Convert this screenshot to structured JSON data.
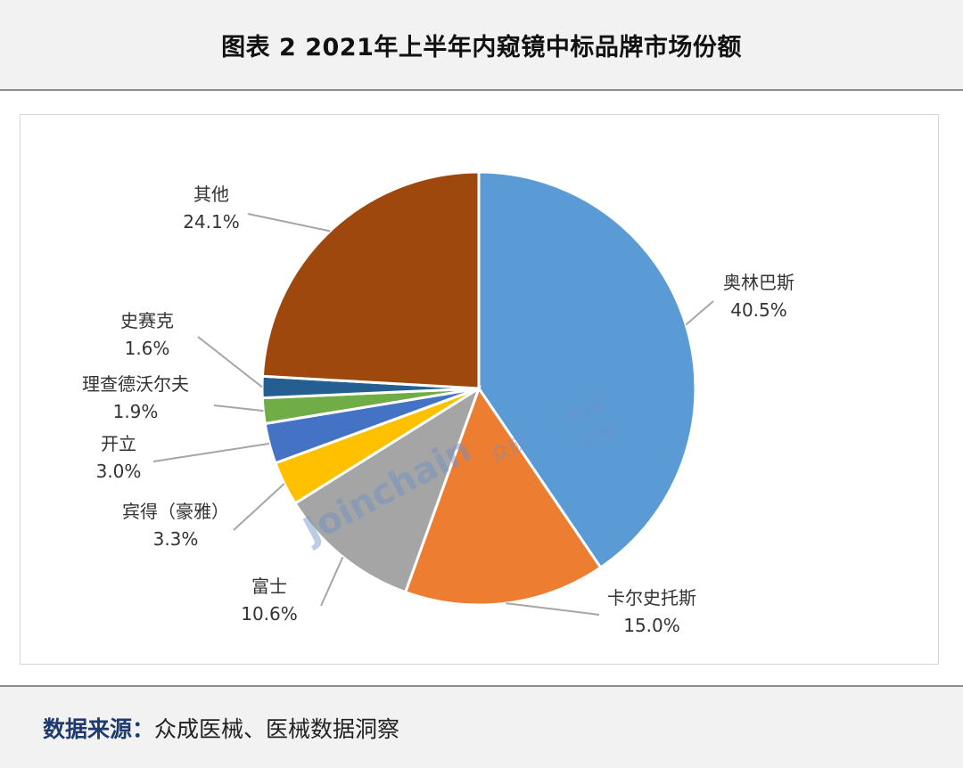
{
  "header": {
    "title": "图表 2  2021年上半年内窥镜中标品牌市场份额"
  },
  "footer": {
    "label": "数据来源：",
    "text": "众成医械、医械数据洞察"
  },
  "watermark": {
    "main": "Joinchain",
    "cn": "众成",
    "side_top": "医械",
    "side_bottom": "洞察"
  },
  "colors": {
    "slices": [
      "#5b9bd5",
      "#ed7d31",
      "#a5a5a5",
      "#ffc000",
      "#4472c4",
      "#70ad47",
      "#255e91",
      "#9e480e"
    ],
    "leader": "#a6a6a6",
    "footer_label": "#1f3a6e"
  },
  "chart_data": {
    "type": "pie",
    "title": "",
    "start_angle_deg": 0,
    "direction": "clockwise",
    "slices": [
      {
        "name": "奥林巴斯",
        "value": 40.5,
        "label": "40.5%"
      },
      {
        "name": "卡尔史托斯",
        "value": 15.0,
        "label": "15.0%"
      },
      {
        "name": "富士",
        "value": 10.6,
        "label": "10.6%"
      },
      {
        "name": "宾得（豪雅）",
        "value": 3.3,
        "label": "3.3%"
      },
      {
        "name": "开立",
        "value": 3.0,
        "label": "3.0%"
      },
      {
        "name": "理查德沃尔夫",
        "value": 1.9,
        "label": "1.9%"
      },
      {
        "name": "史赛克",
        "value": 1.6,
        "label": "1.6%"
      },
      {
        "name": "其他",
        "value": 24.1,
        "label": "24.1%"
      }
    ]
  }
}
